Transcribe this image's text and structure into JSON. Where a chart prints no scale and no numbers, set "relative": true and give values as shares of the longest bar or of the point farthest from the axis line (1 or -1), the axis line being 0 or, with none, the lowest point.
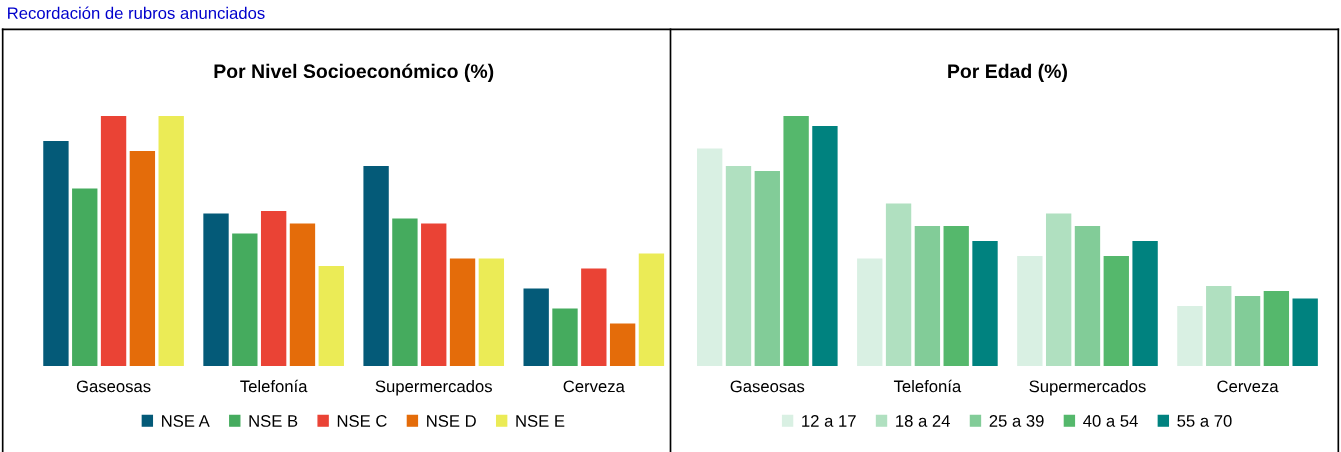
{
  "chart_data": [
    {
      "type": "bar",
      "title": "Por Nivel Socioeconómico (%)",
      "relative": true,
      "legend": "bottom",
      "grid": false,
      "annotations": [
        "Recordación de rubros anunciados"
      ],
      "categories": [
        "Gaseosas",
        "Telefonía",
        "Supermercados",
        "Cerveza"
      ],
      "series": [
        {
          "name": "NSE A",
          "color": "#045a78",
          "values": [
            0.9,
            0.61,
            0.8,
            0.31
          ]
        },
        {
          "name": "NSE B",
          "color": "#45ab5e",
          "values": [
            0.71,
            0.53,
            0.59,
            0.23
          ]
        },
        {
          "name": "NSE C",
          "color": "#ea4335",
          "values": [
            1,
            0.62,
            0.57,
            0.39
          ]
        },
        {
          "name": "NSE D",
          "color": "#e46c0a",
          "values": [
            0.86,
            0.57,
            0.43,
            0.17
          ]
        },
        {
          "name": "NSE E",
          "color": "#ebeb56",
          "values": [
            1,
            0.4,
            0.43,
            0.45
          ]
        }
      ]
    },
    {
      "type": "bar",
      "title": "Por Edad (%)",
      "relative": true,
      "legend": "bottom",
      "grid": false,
      "categories": [
        "Gaseosas",
        "Telefonía",
        "Supermercados",
        "Cerveza"
      ],
      "series": [
        {
          "name": "12 a 17",
          "color": "#d9f0e3",
          "values": [
            0.87,
            0.43,
            0.44,
            0.24
          ]
        },
        {
          "name": "18 a 24",
          "color": "#b0e0c0",
          "values": [
            0.8,
            0.65,
            0.61,
            0.32
          ]
        },
        {
          "name": "25 a 39",
          "color": "#82cc98",
          "values": [
            0.78,
            0.56,
            0.56,
            0.28
          ]
        },
        {
          "name": "40 a 54",
          "color": "#55b86c",
          "values": [
            1,
            0.56,
            0.44,
            0.3
          ]
        },
        {
          "name": "55 a 70",
          "color": "#00827f",
          "values": [
            0.96,
            0.5,
            0.5,
            0.27
          ]
        }
      ]
    }
  ]
}
